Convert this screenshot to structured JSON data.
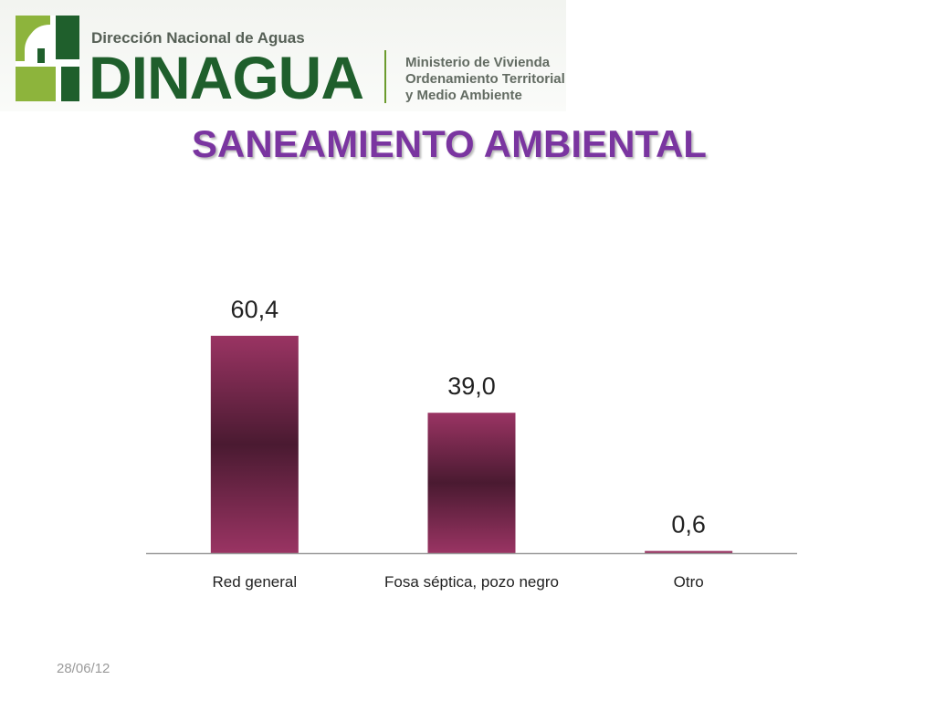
{
  "header": {
    "org": "Dirección Nacional de Aguas",
    "brand": "DINAGUA",
    "ministry": [
      "Ministerio de Vivienda",
      "Ordenamiento Territorial",
      "y Medio Ambiente"
    ],
    "colors": {
      "dark_green": "#1f5f2c",
      "light_green": "#8db43c"
    }
  },
  "title": "SANEAMIENTO AMBIENTAL",
  "footer": {
    "date": "28/06/12"
  },
  "chart_data": {
    "type": "bar",
    "categories": [
      "Red general",
      "Fosa séptica, pozo negro",
      "Otro"
    ],
    "values": [
      60.4,
      39.0,
      0.6
    ],
    "value_labels": [
      "60,4",
      "39,0",
      "0,6"
    ],
    "ylim": [
      0,
      70
    ],
    "grid": false,
    "legend": "none",
    "colors": {
      "bar_outer": "#9a3463",
      "bar_inner": "#4a1a31"
    }
  }
}
